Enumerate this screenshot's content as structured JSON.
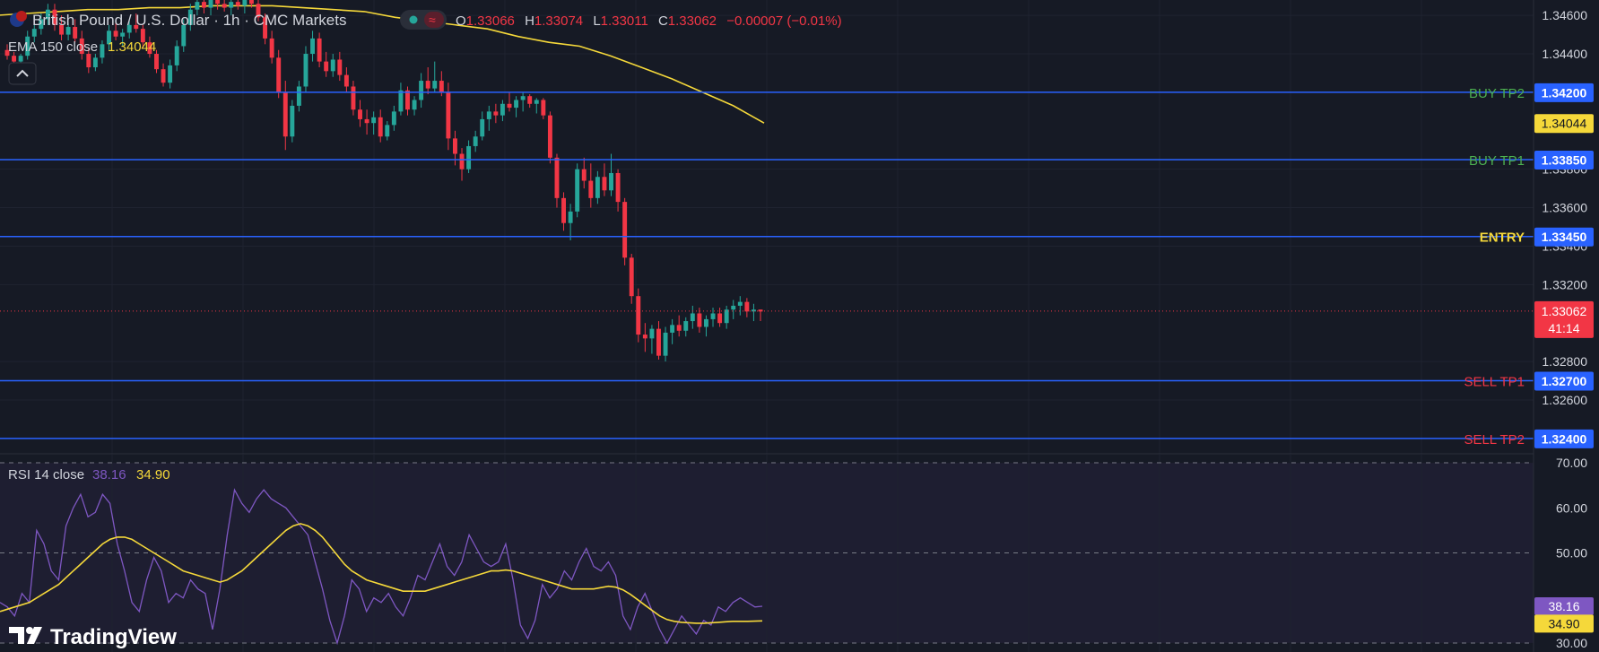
{
  "legend": {
    "symbol": "British Pound / U.S. Dollar · 1h · CMC Markets",
    "ohlc": {
      "o_label": "O",
      "o": "1.33066",
      "h_label": "H",
      "h": "1.33074",
      "l_label": "L",
      "l": "1.33011",
      "c_label": "C",
      "c": "1.33062",
      "change": "−0.00007 (−0.01%)"
    },
    "ema_label": "EMA 150 close",
    "ema_value": "1.34044",
    "collapse_icon": "chevron-up-icon"
  },
  "rsi_legend": {
    "label": "RSI 14 close",
    "rsi_value": "38.16",
    "ma_value": "34.90"
  },
  "branding": {
    "logo_text": "TradingView",
    "logo_icon": "tradingview-logo-icon"
  },
  "price_badges": {
    "last": "1.33062",
    "countdown": "41:14",
    "ema": "1.34044",
    "rsi": "38.16",
    "rsi_ma": "34.90"
  },
  "colors": {
    "background": "#161a25",
    "up": "#26a69a",
    "down": "#f23645",
    "ema": "#f5d83a",
    "level_line": "#2962ff",
    "rsi_line": "#7e57c2",
    "rsi_ma": "#f5d83a",
    "axis_text": "#d1d4dc",
    "buy_label": "#4caf50",
    "sell_label": "#f23645",
    "entry_label": "#f5d83a"
  },
  "chart_data": [
    {
      "type": "candlestick",
      "name": "GBPUSD 1h",
      "y_axis_ticks": [
        "1.34600",
        "1.34400",
        "1.33800",
        "1.33600",
        "1.33400",
        "1.33200",
        "1.32800",
        "1.32600"
      ],
      "ylim": [
        1.3232,
        1.3468
      ],
      "last_price": 1.33062,
      "levels": [
        {
          "label": "BUY TP2",
          "value": "1.34200",
          "kind": "buy"
        },
        {
          "label": "BUY TP1",
          "value": "1.33850",
          "kind": "buy"
        },
        {
          "label": "ENTRY",
          "value": "1.33450",
          "kind": "entry"
        },
        {
          "label": "SELL TP1",
          "value": "1.32700",
          "kind": "sell"
        },
        {
          "label": "SELL TP2",
          "value": "1.32400",
          "kind": "sell"
        }
      ],
      "ema_150": [
        1.346,
        1.3461,
        1.3462,
        1.3463,
        1.3463,
        1.3464,
        1.3464,
        1.3465,
        1.3465,
        1.3465,
        1.3464,
        1.3463,
        1.3462,
        1.3459,
        1.3457,
        1.3455,
        1.3453,
        1.3449,
        1.3446,
        1.3444,
        1.3439,
        1.3433,
        1.3427,
        1.342,
        1.3413,
        1.3404
      ],
      "candles": [
        [
          1.3442,
          1.3445,
          1.3437,
          1.3439
        ],
        [
          1.3439,
          1.3441,
          1.3434,
          1.3436
        ],
        [
          1.3436,
          1.344,
          1.3434,
          1.3439
        ],
        [
          1.3439,
          1.3452,
          1.3437,
          1.3449
        ],
        [
          1.3449,
          1.3456,
          1.3446,
          1.3453
        ],
        [
          1.3453,
          1.3461,
          1.345,
          1.3458
        ],
        [
          1.3458,
          1.3466,
          1.3455,
          1.3463
        ],
        [
          1.3463,
          1.3466,
          1.3452,
          1.3455
        ],
        [
          1.3455,
          1.346,
          1.3447,
          1.345
        ],
        [
          1.345,
          1.3456,
          1.3447,
          1.3454
        ],
        [
          1.3454,
          1.3458,
          1.3446,
          1.3448
        ],
        [
          1.3448,
          1.3452,
          1.3437,
          1.344
        ],
        [
          1.344,
          1.3443,
          1.343,
          1.3433
        ],
        [
          1.3433,
          1.344,
          1.3431,
          1.3438
        ],
        [
          1.3438,
          1.3447,
          1.3435,
          1.3445
        ],
        [
          1.3445,
          1.3455,
          1.3442,
          1.3452
        ],
        [
          1.3452,
          1.3458,
          1.3447,
          1.3449
        ],
        [
          1.3449,
          1.3453,
          1.3444,
          1.3451
        ],
        [
          1.3451,
          1.3457,
          1.3448,
          1.3455
        ],
        [
          1.3455,
          1.3461,
          1.3451,
          1.3453
        ],
        [
          1.3453,
          1.3455,
          1.3443,
          1.3446
        ],
        [
          1.3446,
          1.3449,
          1.3438,
          1.344
        ],
        [
          1.344,
          1.3442,
          1.343,
          1.3432
        ],
        [
          1.3432,
          1.3435,
          1.3423,
          1.3425
        ],
        [
          1.3425,
          1.3437,
          1.3422,
          1.3434
        ],
        [
          1.3434,
          1.3447,
          1.3431,
          1.3444
        ],
        [
          1.3444,
          1.3458,
          1.3441,
          1.3455
        ],
        [
          1.3455,
          1.3466,
          1.3452,
          1.3463
        ],
        [
          1.3463,
          1.347,
          1.346,
          1.3467
        ],
        [
          1.3467,
          1.3472,
          1.3461,
          1.3464
        ],
        [
          1.3464,
          1.347,
          1.346,
          1.3468
        ],
        [
          1.3468,
          1.3472,
          1.3463,
          1.3466
        ],
        [
          1.3466,
          1.347,
          1.3462,
          1.3464
        ],
        [
          1.3464,
          1.3469,
          1.346,
          1.3467
        ],
        [
          1.3467,
          1.3471,
          1.3463,
          1.3465
        ],
        [
          1.3465,
          1.347,
          1.3461,
          1.3468
        ],
        [
          1.3468,
          1.3472,
          1.3464,
          1.3466
        ],
        [
          1.3466,
          1.3469,
          1.3457,
          1.3459
        ],
        [
          1.3459,
          1.3461,
          1.3445,
          1.3448
        ],
        [
          1.3448,
          1.3452,
          1.3435,
          1.3438
        ],
        [
          1.3438,
          1.3442,
          1.3417,
          1.342
        ],
        [
          1.342,
          1.3426,
          1.339,
          1.3397
        ],
        [
          1.3397,
          1.3416,
          1.3394,
          1.3413
        ],
        [
          1.3413,
          1.3426,
          1.341,
          1.3423
        ],
        [
          1.3423,
          1.3444,
          1.342,
          1.344
        ],
        [
          1.344,
          1.3452,
          1.3436,
          1.3448
        ],
        [
          1.3448,
          1.3451,
          1.3433,
          1.3436
        ],
        [
          1.3436,
          1.3441,
          1.3428,
          1.3431
        ],
        [
          1.3431,
          1.344,
          1.3428,
          1.3437
        ],
        [
          1.3437,
          1.3441,
          1.3426,
          1.3429
        ],
        [
          1.3429,
          1.3433,
          1.342,
          1.3423
        ],
        [
          1.3423,
          1.3426,
          1.3408,
          1.3411
        ],
        [
          1.3411,
          1.3416,
          1.3402,
          1.3406
        ],
        [
          1.3406,
          1.3411,
          1.3398,
          1.3404
        ],
        [
          1.3404,
          1.341,
          1.3398,
          1.3407
        ],
        [
          1.3407,
          1.3411,
          1.3394,
          1.3397
        ],
        [
          1.3397,
          1.3405,
          1.3395,
          1.3403
        ],
        [
          1.3403,
          1.3413,
          1.34,
          1.341
        ],
        [
          1.341,
          1.3425,
          1.3408,
          1.3421
        ],
        [
          1.3421,
          1.3423,
          1.3408,
          1.3411
        ],
        [
          1.3411,
          1.3418,
          1.3408,
          1.3416
        ],
        [
          1.3416,
          1.343,
          1.3412,
          1.3426
        ],
        [
          1.3426,
          1.3433,
          1.3419,
          1.3422
        ],
        [
          1.3422,
          1.3436,
          1.342,
          1.3426
        ],
        [
          1.3426,
          1.3431,
          1.3418,
          1.342
        ],
        [
          1.342,
          1.3425,
          1.339,
          1.3396
        ],
        [
          1.3396,
          1.34,
          1.3382,
          1.3388
        ],
        [
          1.3388,
          1.3391,
          1.3374,
          1.338
        ],
        [
          1.338,
          1.3395,
          1.3378,
          1.3392
        ],
        [
          1.3392,
          1.34,
          1.3389,
          1.3397
        ],
        [
          1.3397,
          1.341,
          1.3395,
          1.3406
        ],
        [
          1.3406,
          1.3413,
          1.34,
          1.341
        ],
        [
          1.341,
          1.3414,
          1.3404,
          1.3408
        ],
        [
          1.3408,
          1.3416,
          1.3405,
          1.3414
        ],
        [
          1.3414,
          1.342,
          1.341,
          1.3412
        ],
        [
          1.3412,
          1.3418,
          1.3407,
          1.3416
        ],
        [
          1.3416,
          1.342,
          1.341,
          1.3418
        ],
        [
          1.3418,
          1.3419,
          1.3412,
          1.3414
        ],
        [
          1.3414,
          1.3417,
          1.3409,
          1.3416
        ],
        [
          1.3416,
          1.3417,
          1.3406,
          1.3408
        ],
        [
          1.3408,
          1.341,
          1.3383,
          1.3386
        ],
        [
          1.3386,
          1.3388,
          1.336,
          1.3365
        ],
        [
          1.3365,
          1.3368,
          1.3348,
          1.3352
        ],
        [
          1.3352,
          1.3362,
          1.3343,
          1.3358
        ],
        [
          1.3358,
          1.3383,
          1.3355,
          1.338
        ],
        [
          1.338,
          1.3386,
          1.337,
          1.3374
        ],
        [
          1.3374,
          1.3383,
          1.336,
          1.3365
        ],
        [
          1.3365,
          1.3379,
          1.3362,
          1.3376
        ],
        [
          1.3376,
          1.3383,
          1.3366,
          1.3369
        ],
        [
          1.3369,
          1.3388,
          1.3366,
          1.3378
        ],
        [
          1.3378,
          1.338,
          1.3358,
          1.3363
        ],
        [
          1.3363,
          1.3365,
          1.333,
          1.3334
        ],
        [
          1.3334,
          1.3336,
          1.331,
          1.3314
        ],
        [
          1.3314,
          1.3318,
          1.329,
          1.3294
        ],
        [
          1.3294,
          1.33,
          1.3285,
          1.3292
        ],
        [
          1.3292,
          1.3299,
          1.3284,
          1.3297
        ],
        [
          1.3297,
          1.3301,
          1.3281,
          1.3283
        ],
        [
          1.3283,
          1.3298,
          1.328,
          1.3295
        ],
        [
          1.3295,
          1.3302,
          1.3289,
          1.3299
        ],
        [
          1.3299,
          1.3304,
          1.3293,
          1.3296
        ],
        [
          1.3296,
          1.3303,
          1.3293,
          1.3301
        ],
        [
          1.3301,
          1.3309,
          1.3297,
          1.3305
        ],
        [
          1.3305,
          1.3308,
          1.3295,
          1.3298
        ],
        [
          1.3298,
          1.3304,
          1.3293,
          1.3302
        ],
        [
          1.3302,
          1.3308,
          1.3298,
          1.3305
        ],
        [
          1.3305,
          1.3308,
          1.3298,
          1.33
        ],
        [
          1.33,
          1.3309,
          1.3297,
          1.3307
        ],
        [
          1.3307,
          1.3312,
          1.3302,
          1.3309
        ],
        [
          1.3309,
          1.3314,
          1.3304,
          1.3311
        ],
        [
          1.3311,
          1.3313,
          1.3303,
          1.3306
        ],
        [
          1.3306,
          1.331,
          1.3301,
          1.3307
        ],
        [
          1.3307,
          1.3307,
          1.3301,
          1.3306
        ]
      ]
    },
    {
      "type": "line",
      "name": "RSI 14 close",
      "y_axis_ticks": [
        "70.00",
        "60.00",
        "50.00",
        "30.00"
      ],
      "ylim": [
        28,
        72
      ],
      "bands": [
        30,
        50,
        70
      ],
      "series": [
        {
          "name": "RSI",
          "values": [
            39,
            38,
            36,
            41,
            39,
            55,
            52,
            46,
            44,
            56,
            60,
            63,
            58,
            59,
            63,
            61,
            52,
            46,
            39,
            37,
            44,
            49,
            46,
            39,
            41,
            40,
            44,
            42,
            41,
            33,
            42,
            54,
            64,
            61,
            59,
            62,
            64,
            62,
            61,
            60,
            58,
            56,
            54,
            48,
            42,
            35,
            30,
            36,
            44,
            42,
            37,
            40,
            39,
            41,
            38,
            36,
            40,
            45,
            44,
            48,
            52,
            47,
            45,
            48,
            54,
            51,
            48,
            47,
            48,
            52,
            44,
            34,
            31,
            35,
            43,
            40,
            42,
            46,
            44,
            48,
            51,
            47,
            46,
            48,
            45,
            36,
            33,
            38,
            41,
            37,
            33,
            30,
            33,
            36,
            34,
            32,
            35,
            34,
            38,
            37,
            39,
            40,
            39,
            38,
            38.16
          ]
        },
        {
          "name": "RSI MA",
          "values": [
            37,
            37.5,
            38,
            38.5,
            39,
            40,
            41,
            42,
            43,
            44.5,
            46,
            47.5,
            49,
            50.5,
            52,
            53,
            53.5,
            53.5,
            53,
            52,
            51,
            50,
            49,
            48,
            47,
            46,
            45.5,
            45,
            44.5,
            44,
            43.5,
            44,
            45,
            46,
            47.5,
            49,
            50.5,
            52,
            53.5,
            55,
            56,
            56.5,
            56,
            55,
            53.5,
            51.5,
            49.5,
            47.5,
            46,
            45,
            44,
            43.5,
            43,
            42.5,
            42,
            41.5,
            41.5,
            41.5,
            41.5,
            42,
            42.5,
            43,
            43.5,
            44,
            44.5,
            45,
            45.5,
            46,
            46,
            46.2,
            46,
            45.5,
            45,
            44.5,
            44,
            43.5,
            43,
            42.5,
            42,
            42,
            42,
            42,
            42.3,
            42.6,
            42.4,
            41.8,
            40.8,
            39.6,
            38.4,
            37.2,
            36,
            35.2,
            34.8,
            34.6,
            34.5,
            34.4,
            34.4,
            34.5,
            34.6,
            34.7,
            34.8,
            34.8,
            34.8,
            34.85,
            34.9
          ]
        }
      ]
    }
  ]
}
